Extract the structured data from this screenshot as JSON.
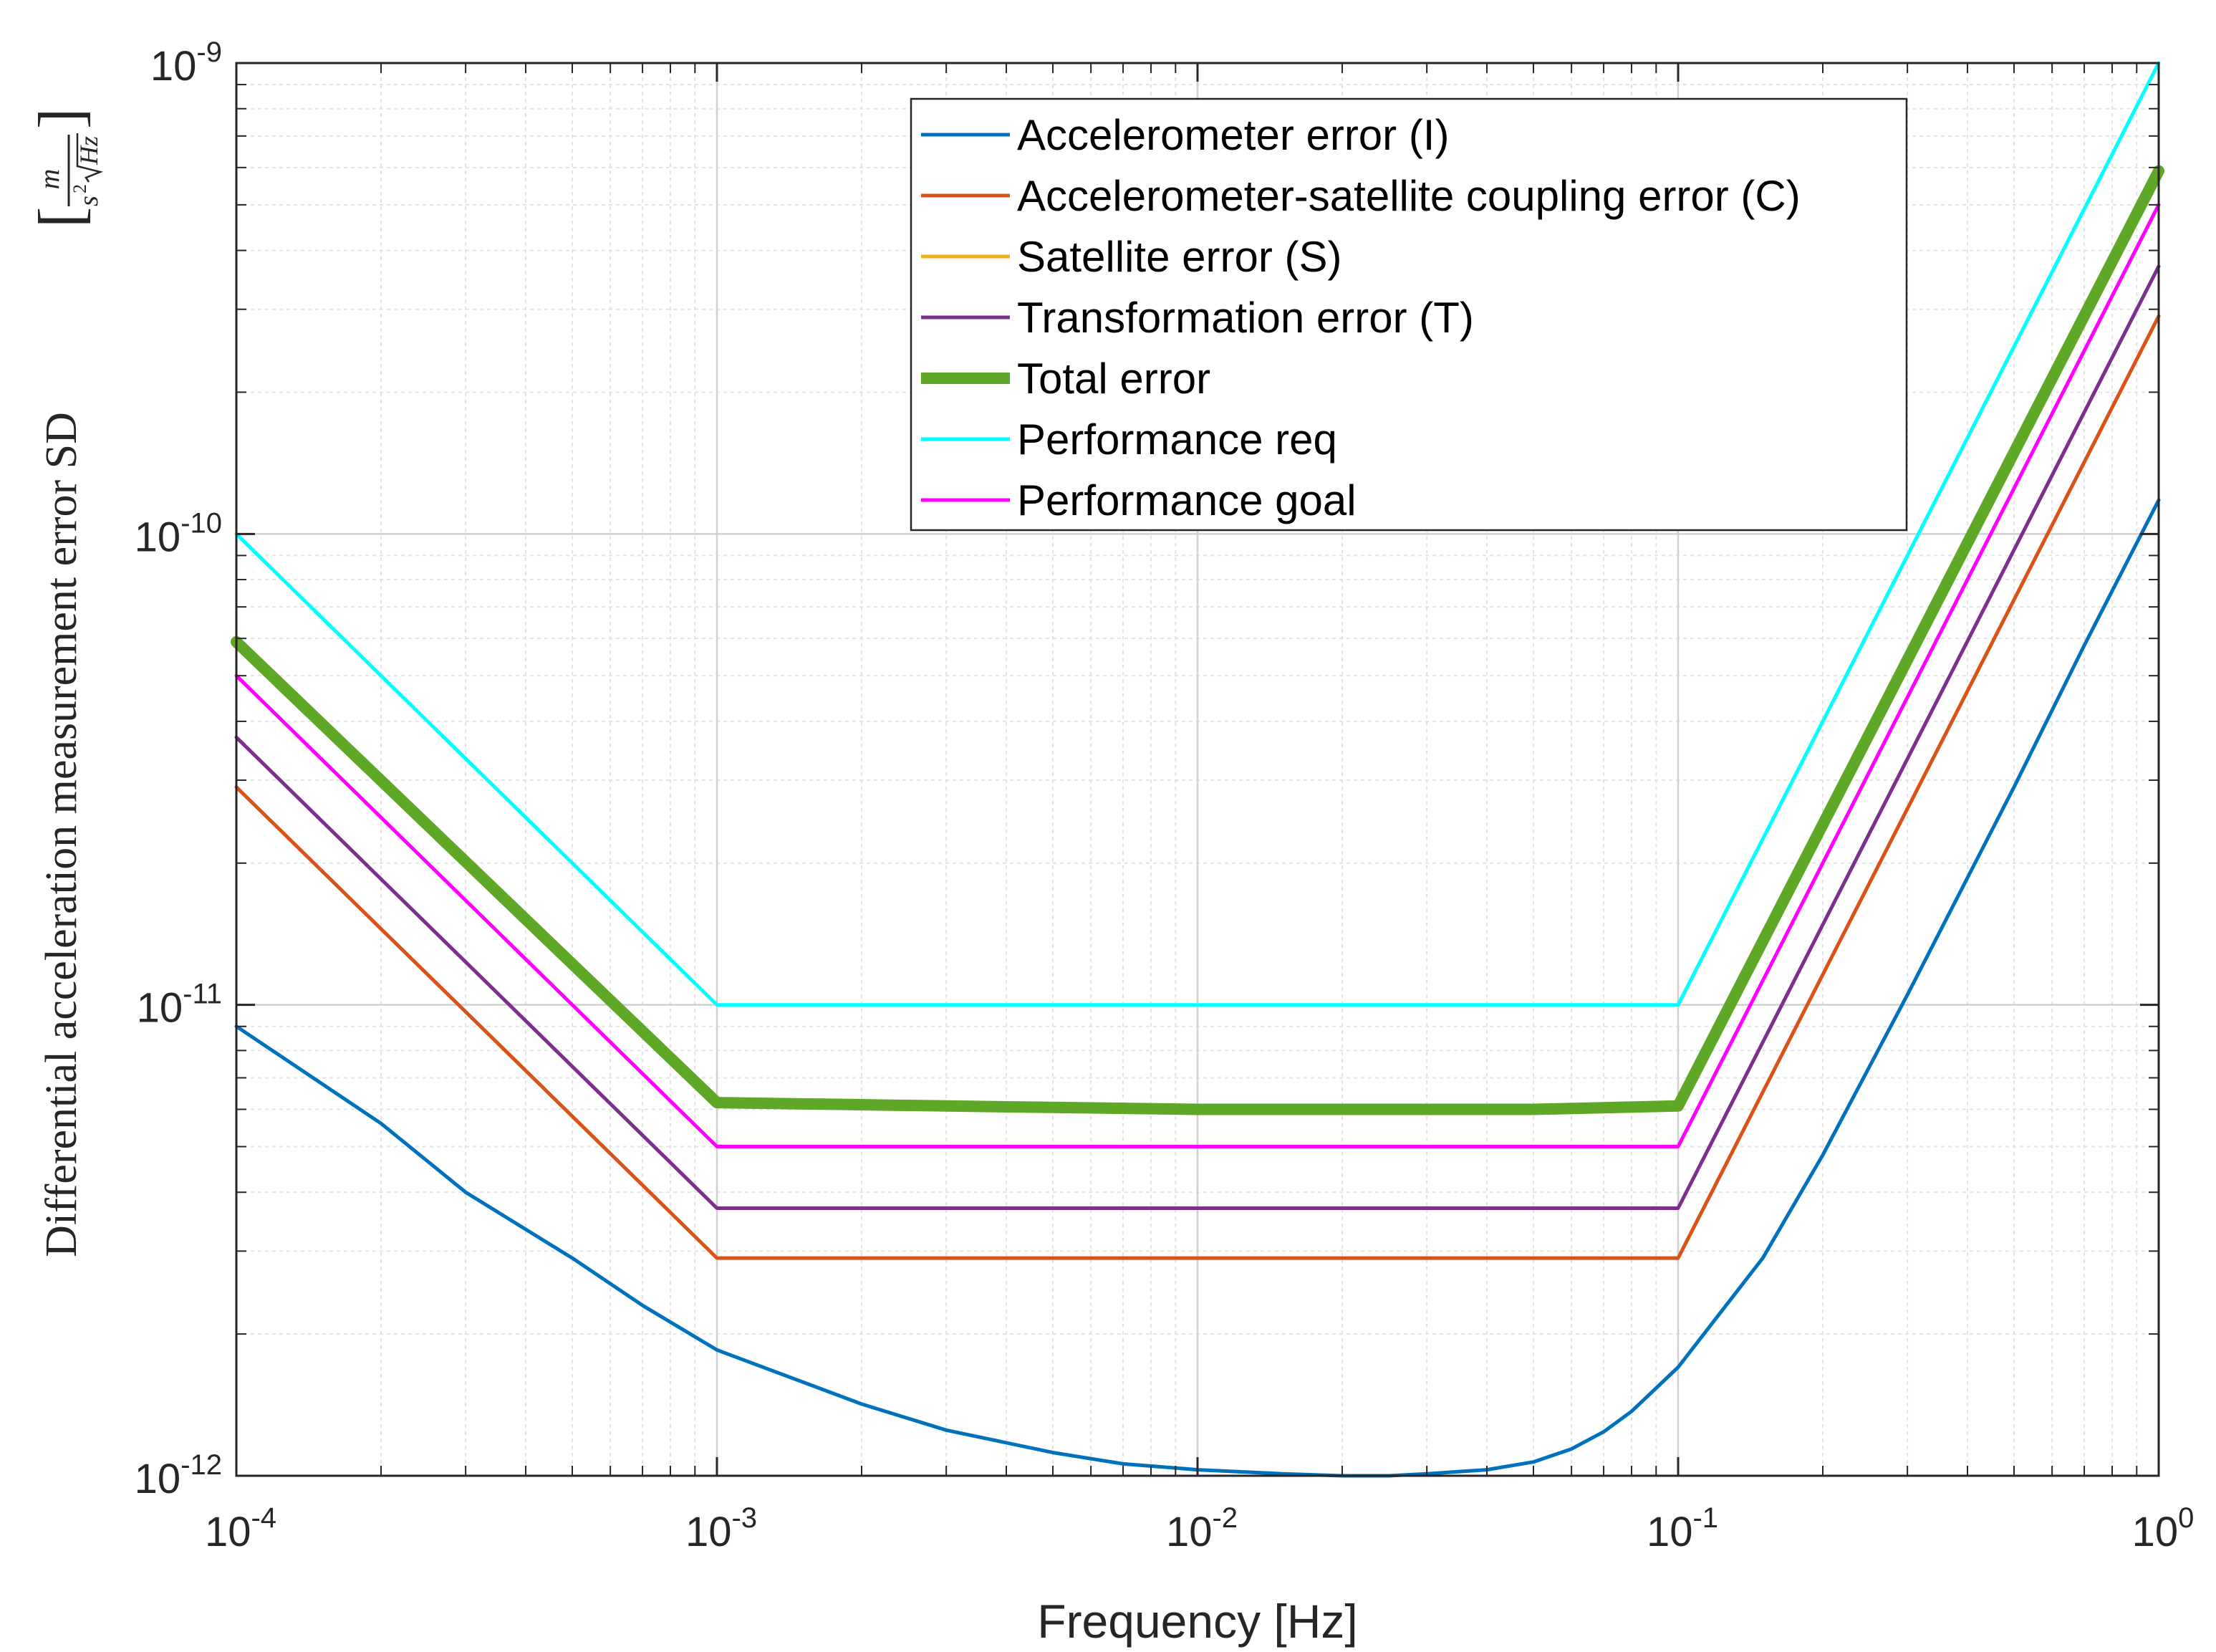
{
  "chart_data": {
    "type": "line",
    "xlabel": "Frequency [Hz]",
    "ylabel": {
      "text": "Differential acceleration measurement error SD",
      "unit_numerator": "m",
      "unit_denominator_base": "s",
      "unit_denominator_exponent": "2",
      "unit_denominator_root": "Hz"
    },
    "xscale": "log",
    "yscale": "log",
    "xlim": [
      0.0001,
      1
    ],
    "ylim": [
      1e-12,
      1e-09
    ],
    "grid": true,
    "minor_grid": true,
    "legend_position": "top-right",
    "x_ticks": [
      {
        "base": "10",
        "exp": "-4"
      },
      {
        "base": "10",
        "exp": "-3"
      },
      {
        "base": "10",
        "exp": "-2"
      },
      {
        "base": "10",
        "exp": "-1"
      },
      {
        "base": "10",
        "exp": "0"
      }
    ],
    "y_ticks": [
      {
        "base": "10",
        "exp": "-12"
      },
      {
        "base": "10",
        "exp": "-11"
      },
      {
        "base": "10",
        "exp": "-10"
      },
      {
        "base": "10",
        "exp": "-9"
      }
    ],
    "series": [
      {
        "name": "Accelerometer error (I)",
        "color": "#0072BD",
        "line_width": "thin",
        "x": [
          0.0001,
          0.0002,
          0.0003,
          0.0005,
          0.0007,
          0.001,
          0.002,
          0.003,
          0.005,
          0.007,
          0.01,
          0.015,
          0.02,
          0.025,
          0.03,
          0.04,
          0.05,
          0.06,
          0.07,
          0.08,
          0.1,
          0.15,
          0.2,
          0.3,
          0.5,
          0.7,
          1
        ],
        "y": [
          9e-12,
          5.6e-12,
          4e-12,
          2.9e-12,
          2.3e-12,
          1.85e-12,
          1.42e-12,
          1.25e-12,
          1.12e-12,
          1.06e-12,
          1.03e-12,
          1.01e-12,
          1e-12,
          1e-12,
          1.01e-12,
          1.03e-12,
          1.07e-12,
          1.14e-12,
          1.24e-12,
          1.37e-12,
          1.7e-12,
          2.9e-12,
          4.8e-12,
          1.05e-11,
          2.9e-11,
          5.8e-11,
          1.18e-10
        ]
      },
      {
        "name": "Accelerometer-satellite coupling error (C)",
        "color": "#D95319",
        "line_width": "thin",
        "x": [
          0.0001,
          0.001,
          0.1,
          1
        ],
        "y": [
          2.9e-11,
          2.9e-12,
          2.9e-12,
          2.9e-10
        ]
      },
      {
        "name": "Satellite error (S)",
        "color": "#EDB120",
        "line_width": "thin",
        "x": [],
        "y": []
      },
      {
        "name": "Transformation error (T)",
        "color": "#7E2F8E",
        "line_width": "thin",
        "x": [
          0.0001,
          0.001,
          0.1,
          1
        ],
        "y": [
          3.7e-11,
          3.7e-12,
          3.7e-12,
          3.7e-10
        ]
      },
      {
        "name": "Total error",
        "color": "#5FA827",
        "line_width": "thick",
        "x": [
          0.0001,
          0.001,
          0.003,
          0.01,
          0.02,
          0.05,
          0.1,
          1
        ],
        "y": [
          5.9e-11,
          6.2e-12,
          6.1e-12,
          6e-12,
          6e-12,
          6e-12,
          6.1e-12,
          5.9e-10
        ]
      },
      {
        "name": "Performance req",
        "color": "#00FFFF",
        "line_width": "thin",
        "x": [
          0.0001,
          0.001,
          0.1,
          1
        ],
        "y": [
          1e-10,
          1e-11,
          1e-11,
          1e-09
        ]
      },
      {
        "name": "Performance goal",
        "color": "#FF00FF",
        "line_width": "thin",
        "x": [
          0.0001,
          0.001,
          0.1,
          1
        ],
        "y": [
          5e-11,
          5e-12,
          5e-12,
          5e-10
        ]
      }
    ]
  }
}
